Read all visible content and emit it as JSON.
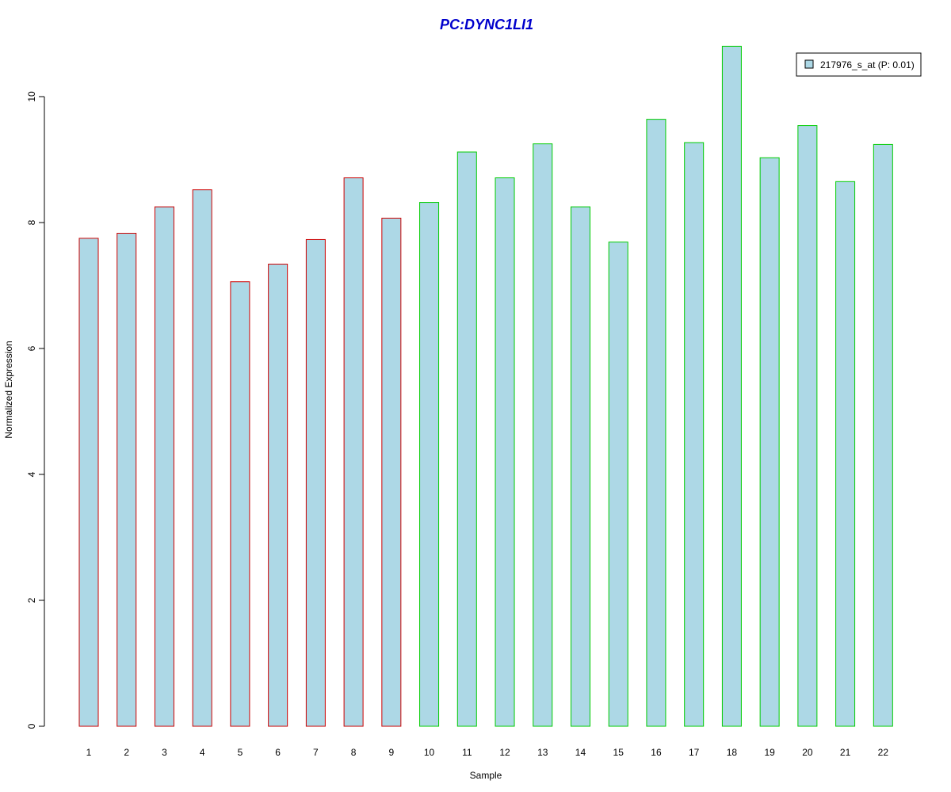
{
  "chart_data": {
    "type": "bar",
    "title": "PC:DYNC1LI1",
    "xlabel": "Sample",
    "ylabel": "Normalized Expression",
    "ylim": [
      0,
      10.8
    ],
    "yticks": [
      0,
      2,
      4,
      6,
      8,
      10
    ],
    "grid": false,
    "legend_position": "top-right",
    "categories": [
      "1",
      "2",
      "3",
      "4",
      "5",
      "6",
      "7",
      "8",
      "9",
      "10",
      "11",
      "12",
      "13",
      "14",
      "15",
      "16",
      "17",
      "18",
      "19",
      "20",
      "21",
      "22"
    ],
    "series": [
      {
        "name": "217976_s_at (P: 0.01)",
        "values": [
          7.75,
          7.83,
          8.25,
          8.52,
          7.06,
          7.34,
          7.73,
          8.71,
          8.07,
          8.32,
          9.12,
          8.71,
          9.25,
          8.25,
          7.69,
          9.64,
          9.27,
          10.8,
          9.03,
          9.54,
          8.65,
          9.24
        ]
      }
    ],
    "group_of_bar": [
      "control",
      "control",
      "control",
      "control",
      "control",
      "control",
      "control",
      "control",
      "control",
      "case",
      "case",
      "case",
      "case",
      "case",
      "case",
      "case",
      "case",
      "case",
      "case",
      "case",
      "case",
      "case"
    ]
  },
  "colors": {
    "title": "#0000cc",
    "bar_fill": "#add8e6",
    "control_border": "#cc0000",
    "case_border": "#00cc00",
    "axis": "#000000"
  }
}
